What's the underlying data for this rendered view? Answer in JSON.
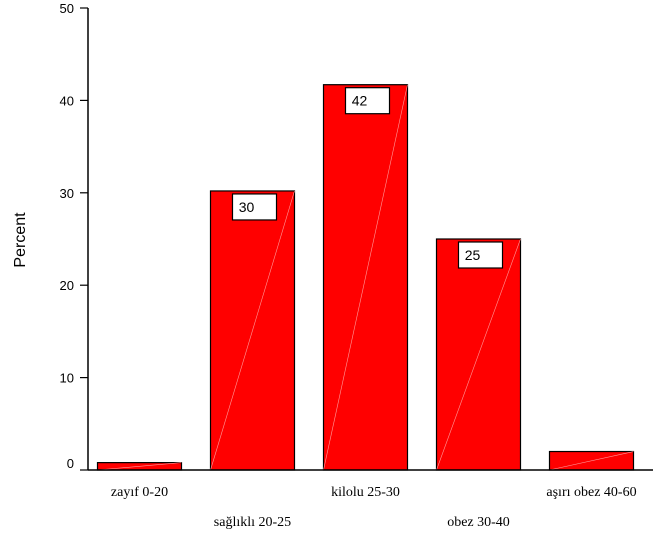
{
  "chart_data": {
    "type": "bar",
    "categories": [
      "zayıf 0-20",
      "sağlıklı 20-25",
      "kilolu 25-30",
      "obez 30-40",
      "aşırı obez 40-60"
    ],
    "values": [
      0.8,
      30.2,
      41.7,
      25.0,
      2.0
    ],
    "data_labels": [
      "",
      "30",
      "42",
      "25",
      ""
    ],
    "title": "",
    "xlabel": "",
    "ylabel": "Percent",
    "ylim": [
      0,
      50
    ],
    "yticks": [
      "0",
      "10",
      "20",
      "30",
      "40",
      "50"
    ],
    "grid": false,
    "legend": "none",
    "bar_color": "#ff0000",
    "bar_edge_color": "#000000"
  }
}
